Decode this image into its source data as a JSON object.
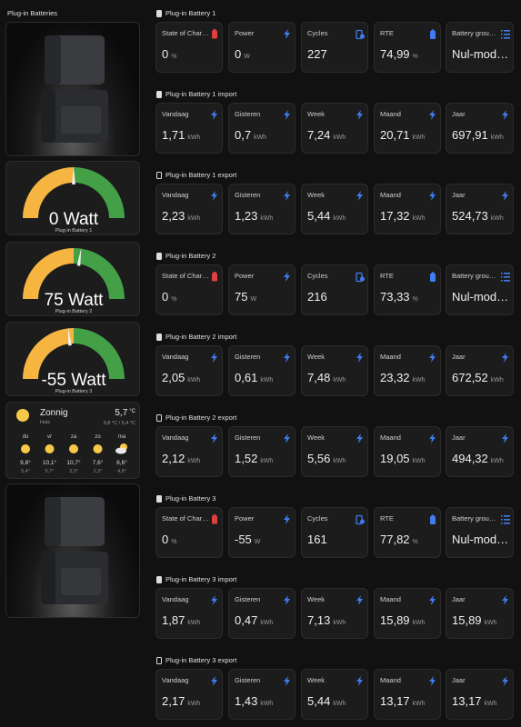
{
  "left_header": "Plug-in Batteries",
  "gauges": [
    {
      "name": "Plug-in Battery 1",
      "value": 0,
      "unit": "Watt",
      "min": -800,
      "max": 800
    },
    {
      "name": "Plug-in Battery 2",
      "value": 75,
      "unit": "Watt",
      "min": -800,
      "max": 800
    },
    {
      "name": "Plug-in Battery 3",
      "value": -55,
      "unit": "Watt",
      "min": -800,
      "max": 800
    }
  ],
  "weather": {
    "condition": "Zonnig",
    "location": "Huis",
    "temperature": "5,7",
    "unit": "°C",
    "range": "9,8 °C / 5,4 °C",
    "forecast": [
      {
        "day": "do",
        "icon": "sun",
        "high": "9,8°",
        "low": "5,4°"
      },
      {
        "day": "vr",
        "icon": "sun",
        "high": "10,1°",
        "low": "5,7°"
      },
      {
        "day": "za",
        "icon": "sun",
        "high": "10,7°",
        "low": "3,3°"
      },
      {
        "day": "zo",
        "icon": "sun",
        "high": "7,6°",
        "low": "2,3°"
      },
      {
        "day": "ma",
        "icon": "cloud-sun",
        "high": "8,6°",
        "low": "4,8°"
      }
    ]
  },
  "sections": [
    {
      "title": "Plug-in Battery 1",
      "cards": [
        {
          "label": "State of Char…",
          "icon": "battery-alert",
          "value": "0",
          "unit": "%"
        },
        {
          "label": "Power",
          "icon": "bolt",
          "value": "0",
          "unit": "W"
        },
        {
          "label": "Cycles",
          "icon": "battery-sync",
          "value": "227"
        },
        {
          "label": "RTE",
          "icon": "battery-lock",
          "value": "74,99",
          "unit": "%"
        },
        {
          "label": "Battery grou…",
          "icon": "list",
          "value": "Nul-mod…"
        }
      ]
    },
    {
      "title": "Plug-in Battery 1 import",
      "cards": [
        {
          "label": "Vandaag",
          "icon": "bolt",
          "value": "1,71",
          "unit": "kWh"
        },
        {
          "label": "Gisteren",
          "icon": "bolt",
          "value": "0,7",
          "unit": "kWh"
        },
        {
          "label": "Week",
          "icon": "bolt",
          "value": "7,24",
          "unit": "kWh"
        },
        {
          "label": "Maand",
          "icon": "bolt",
          "value": "20,71",
          "unit": "kWh"
        },
        {
          "label": "Jaar",
          "icon": "bolt",
          "value": "697,91",
          "unit": "kWh"
        }
      ]
    },
    {
      "title": "Plug-in Battery 1 export",
      "cards": [
        {
          "label": "Vandaag",
          "icon": "bolt",
          "value": "2,23",
          "unit": "kWh"
        },
        {
          "label": "Gisteren",
          "icon": "bolt",
          "value": "1,23",
          "unit": "kWh"
        },
        {
          "label": "Week",
          "icon": "bolt",
          "value": "5,44",
          "unit": "kWh"
        },
        {
          "label": "Maand",
          "icon": "bolt",
          "value": "17,32",
          "unit": "kWh"
        },
        {
          "label": "Jaar",
          "icon": "bolt",
          "value": "524,73",
          "unit": "kWh"
        }
      ]
    },
    {
      "title": "Plug-in Battery 2",
      "cards": [
        {
          "label": "State of Char…",
          "icon": "battery-alert",
          "value": "0",
          "unit": "%"
        },
        {
          "label": "Power",
          "icon": "bolt",
          "value": "75",
          "unit": "W"
        },
        {
          "label": "Cycles",
          "icon": "battery-sync",
          "value": "216"
        },
        {
          "label": "RTE",
          "icon": "battery-lock",
          "value": "73,33",
          "unit": "%"
        },
        {
          "label": "Battery grou…",
          "icon": "list",
          "value": "Nul-mod…"
        }
      ]
    },
    {
      "title": "Plug-in Battery 2 import",
      "cards": [
        {
          "label": "Vandaag",
          "icon": "bolt",
          "value": "2,05",
          "unit": "kWh"
        },
        {
          "label": "Gisteren",
          "icon": "bolt",
          "value": "0,61",
          "unit": "kWh"
        },
        {
          "label": "Week",
          "icon": "bolt",
          "value": "7,48",
          "unit": "kWh"
        },
        {
          "label": "Maand",
          "icon": "bolt",
          "value": "23,32",
          "unit": "kWh"
        },
        {
          "label": "Jaar",
          "icon": "bolt",
          "value": "672,52",
          "unit": "kWh"
        }
      ]
    },
    {
      "title": "Plug-in Battery 2 export",
      "cards": [
        {
          "label": "Vandaag",
          "icon": "bolt",
          "value": "2,12",
          "unit": "kWh"
        },
        {
          "label": "Gisteren",
          "icon": "bolt",
          "value": "1,52",
          "unit": "kWh"
        },
        {
          "label": "Week",
          "icon": "bolt",
          "value": "5,56",
          "unit": "kWh"
        },
        {
          "label": "Maand",
          "icon": "bolt",
          "value": "19,05",
          "unit": "kWh"
        },
        {
          "label": "Jaar",
          "icon": "bolt",
          "value": "494,32",
          "unit": "kWh"
        }
      ]
    },
    {
      "title": "Plug-in Battery 3",
      "cards": [
        {
          "label": "State of Char…",
          "icon": "battery-alert",
          "value": "0",
          "unit": "%"
        },
        {
          "label": "Power",
          "icon": "bolt",
          "value": "-55",
          "unit": "W"
        },
        {
          "label": "Cycles",
          "icon": "battery-sync",
          "value": "161"
        },
        {
          "label": "RTE",
          "icon": "battery-lock",
          "value": "77,82",
          "unit": "%"
        },
        {
          "label": "Battery grou…",
          "icon": "list",
          "value": "Nul-mod…"
        }
      ]
    },
    {
      "title": "Plug-in Battery 3 import",
      "cards": [
        {
          "label": "Vandaag",
          "icon": "bolt",
          "value": "1,87",
          "unit": "kWh"
        },
        {
          "label": "Gisteren",
          "icon": "bolt",
          "value": "0,47",
          "unit": "kWh"
        },
        {
          "label": "Week",
          "icon": "bolt",
          "value": "7,13",
          "unit": "kWh"
        },
        {
          "label": "Maand",
          "icon": "bolt",
          "value": "15,89",
          "unit": "kWh"
        },
        {
          "label": "Jaar",
          "icon": "bolt",
          "value": "15,89",
          "unit": "kWh"
        }
      ]
    },
    {
      "title": "Plug-in Battery 3 export",
      "cards": [
        {
          "label": "Vandaag",
          "icon": "bolt",
          "value": "2,17",
          "unit": "kWh"
        },
        {
          "label": "Gisteren",
          "icon": "bolt",
          "value": "1,43",
          "unit": "kWh"
        },
        {
          "label": "Week",
          "icon": "bolt",
          "value": "5,44",
          "unit": "kWh"
        },
        {
          "label": "Maand",
          "icon": "bolt",
          "value": "13,17",
          "unit": "kWh"
        },
        {
          "label": "Jaar",
          "icon": "bolt",
          "value": "13,17",
          "unit": "kWh"
        }
      ]
    }
  ]
}
